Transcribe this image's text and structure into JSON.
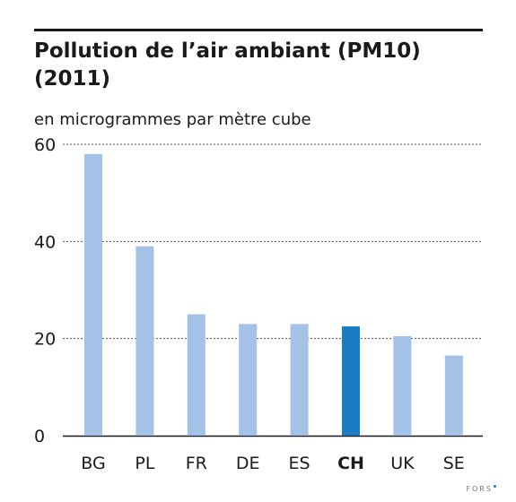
{
  "header": {
    "title": "Pollution de l’air ambiant (PM10) (2011)",
    "subtitle": "en microgrammes par mètre cube"
  },
  "footer": {
    "source": "FORS"
  },
  "colors": {
    "bar": "#a4c2e8",
    "bar_highlight": "#1a7cc4",
    "grid": "#555555",
    "text": "#1a1a1a"
  },
  "chart_data": {
    "type": "bar",
    "title": "Pollution de l’air ambiant (PM10) (2011)",
    "subtitle": "en microgrammes par mètre cube",
    "xlabel": "",
    "ylabel": "",
    "categories": [
      "BG",
      "PL",
      "FR",
      "DE",
      "ES",
      "CH",
      "UK",
      "SE"
    ],
    "values": [
      58,
      39,
      25,
      23,
      23,
      22.5,
      20.5,
      16.5
    ],
    "highlight": "CH",
    "ylim": [
      0,
      60
    ],
    "yticks": [
      0,
      20,
      40,
      60
    ],
    "grid": true,
    "legend": "none"
  }
}
